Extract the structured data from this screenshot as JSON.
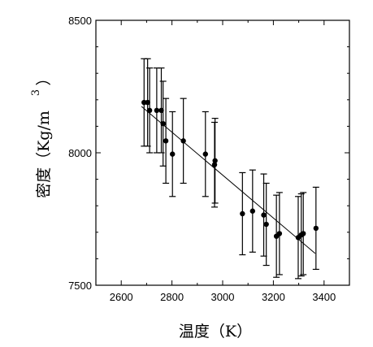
{
  "chart_data": {
    "type": "scatter",
    "xlabel": "温度（K）",
    "ylabel": "密度（Kg/m",
    "ylabel_superscript": "3",
    "xlim": [
      2500,
      3500
    ],
    "ylim": [
      7500,
      8500
    ],
    "x_ticks": [
      2600,
      2800,
      3000,
      3200,
      3400
    ],
    "y_ticks": [
      7500,
      8000,
      8500
    ],
    "x_tick_labels": [
      "2600",
      "2800",
      "3000",
      "3200",
      "3400"
    ],
    "y_tick_labels": [
      "7500",
      "8000",
      "8500"
    ],
    "grid": false,
    "points": [
      {
        "x": 2690,
        "y": 8190,
        "err": 165
      },
      {
        "x": 2704,
        "y": 8190,
        "err": 165
      },
      {
        "x": 2712,
        "y": 8160,
        "err": 160
      },
      {
        "x": 2740,
        "y": 8160,
        "err": 160
      },
      {
        "x": 2758,
        "y": 8160,
        "err": 160
      },
      {
        "x": 2765,
        "y": 8110,
        "err": 160
      },
      {
        "x": 2776,
        "y": 8045,
        "err": 160
      },
      {
        "x": 2802,
        "y": 7995,
        "err": 160
      },
      {
        "x": 2845,
        "y": 8045,
        "err": 160
      },
      {
        "x": 2932,
        "y": 7995,
        "err": 160
      },
      {
        "x": 2968,
        "y": 7955,
        "err": 160
      },
      {
        "x": 2970,
        "y": 7970,
        "err": 160
      },
      {
        "x": 3078,
        "y": 7770,
        "err": 155
      },
      {
        "x": 3118,
        "y": 7780,
        "err": 155
      },
      {
        "x": 3162,
        "y": 7765,
        "err": 155
      },
      {
        "x": 3172,
        "y": 7730,
        "err": 155
      },
      {
        "x": 3212,
        "y": 7685,
        "err": 155
      },
      {
        "x": 3224,
        "y": 7695,
        "err": 155
      },
      {
        "x": 3298,
        "y": 7680,
        "err": 155
      },
      {
        "x": 3310,
        "y": 7690,
        "err": 155
      },
      {
        "x": 3318,
        "y": 7695,
        "err": 155
      },
      {
        "x": 3368,
        "y": 7715,
        "err": 155
      }
    ],
    "fit_line": [
      {
        "x": 2680,
        "y": 8175
      },
      {
        "x": 3365,
        "y": 7620
      }
    ],
    "colors": {
      "marker": "#000000",
      "axis": "#000000",
      "fit": "#000000"
    }
  }
}
